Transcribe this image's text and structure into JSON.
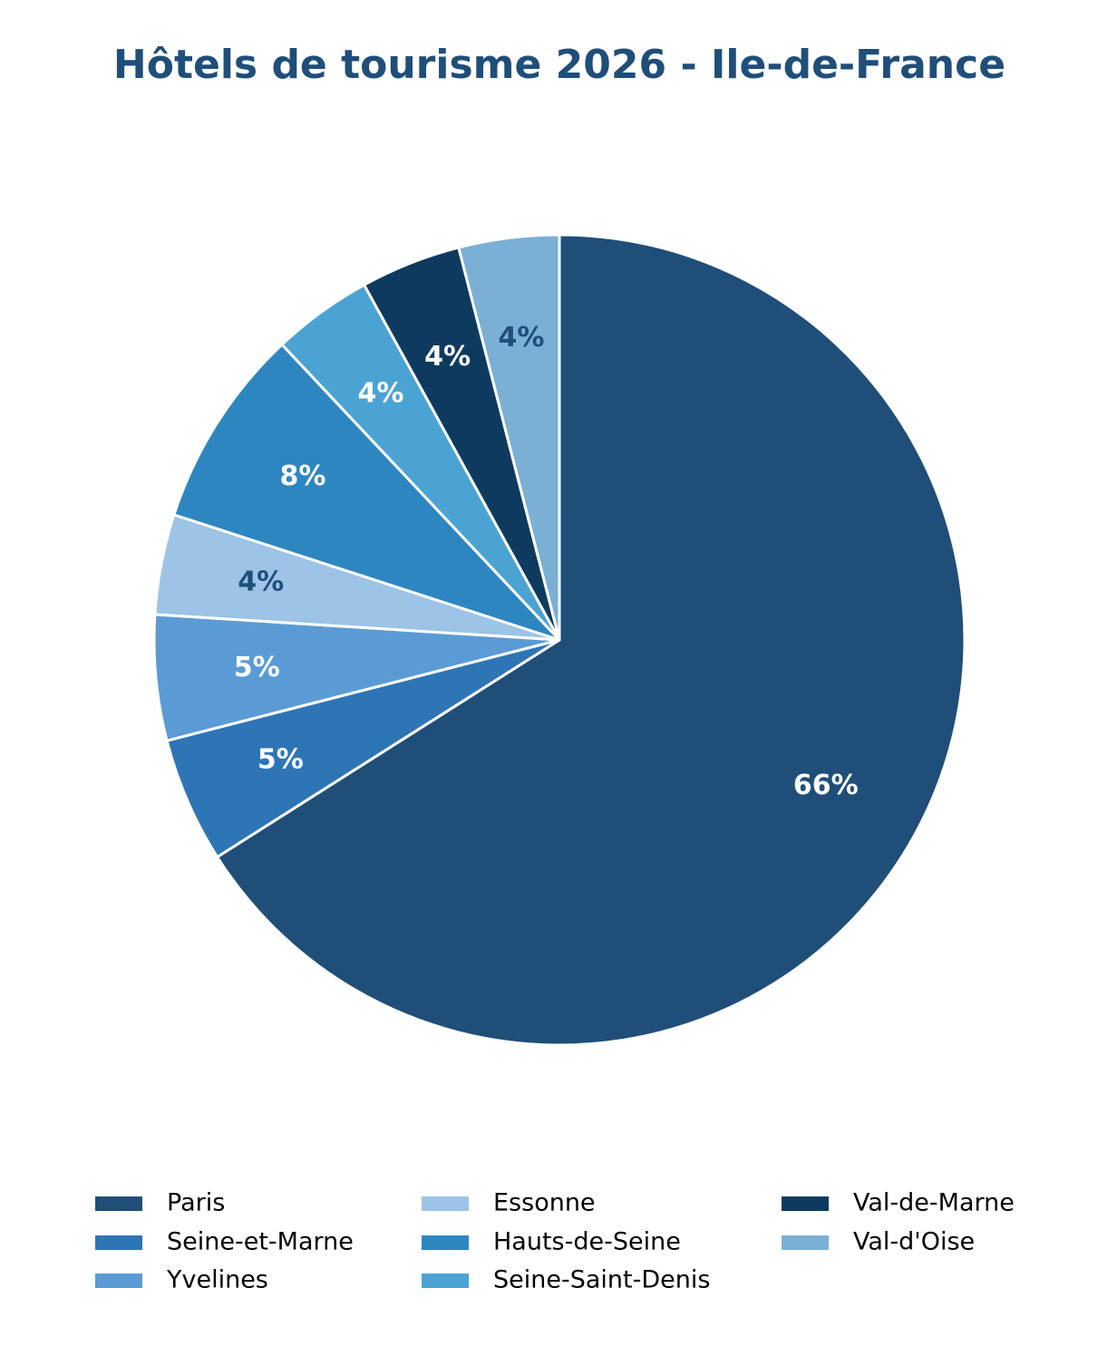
{
  "chart_data": {
    "type": "pie",
    "title": "Hôtels de tourisme 2026 - Ile-de-France",
    "categories": [
      "Paris",
      "Seine-et-Marne",
      "Yvelines",
      "Essonne",
      "Hauts-de-Seine",
      "Seine-Saint-Denis",
      "Val-de-Marne",
      "Val-d'Oise"
    ],
    "values": [
      66,
      5,
      5,
      4,
      8,
      4,
      4,
      4
    ],
    "value_labels": [
      "66%",
      "5%",
      "5%",
      "4%",
      "8%",
      "4%",
      "4%",
      "4%"
    ],
    "colors": [
      "#1f4e79",
      "#2e75b6",
      "#5b9bd5",
      "#9dc3e6",
      "#2e86c1",
      "#4ba3d3",
      "#0e3a5f",
      "#7bafd4"
    ],
    "label_colors": [
      "#ffffff",
      "#ffffff",
      "#ffffff",
      "#1f4e79",
      "#ffffff",
      "#ffffff",
      "#ffffff",
      "#1f4e79"
    ],
    "start_angle": 90,
    "clockwise": true,
    "legend": "bottom"
  }
}
